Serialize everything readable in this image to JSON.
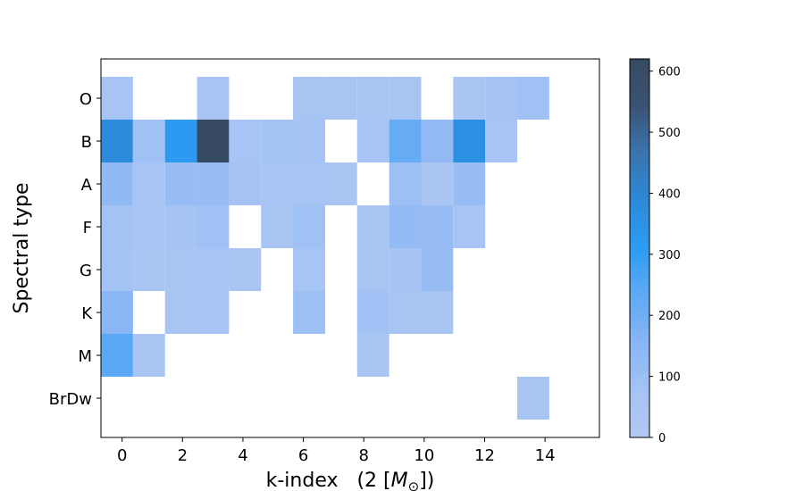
{
  "chart_data": {
    "type": "heatmap",
    "xlabel_text": "k-index   (2 [",
    "xlabel_var": "M",
    "xlabel_sub": "⊙",
    "xlabel_tail": "])",
    "ylabel": "Spectral type",
    "x_bin_edges": [
      -0.7,
      15.2
    ],
    "x_ticks": [
      "0",
      "2",
      "4",
      "6",
      "8",
      "10",
      "12",
      "14"
    ],
    "x_lim": [
      -0.7,
      15.8
    ],
    "y_categories": [
      "O",
      "B",
      "A",
      "F",
      "G",
      "K",
      "M",
      "BrDw"
    ],
    "colorbar": {
      "range": [
        0,
        620
      ],
      "ticks": [
        "0",
        "100",
        "200",
        "300",
        "400",
        "500",
        "600"
      ],
      "colors": [
        "#b3c8f2",
        "#a4c3f4",
        "#88b5f5",
        "#5faaf5",
        "#2c9cf4",
        "#2c8ad8",
        "#3a74af",
        "#3b5373",
        "#364a62"
      ]
    },
    "values": [
      [
        65,
        null,
        null,
        60,
        null,
        null,
        55,
        55,
        55,
        55,
        null,
        50,
        70,
        90,
        null
      ],
      [
        380,
        90,
        320,
        620,
        65,
        80,
        75,
        null,
        60,
        220,
        125,
        360,
        60,
        null,
        null
      ],
      [
        130,
        60,
        110,
        110,
        75,
        60,
        65,
        40,
        null,
        100,
        45,
        110,
        null,
        null,
        null
      ],
      [
        80,
        60,
        70,
        90,
        null,
        50,
        90,
        null,
        50,
        120,
        110,
        60,
        null,
        null,
        null
      ],
      [
        80,
        50,
        50,
        60,
        45,
        null,
        65,
        null,
        55,
        70,
        110,
        null,
        null,
        null,
        null
      ],
      [
        150,
        null,
        55,
        60,
        null,
        null,
        100,
        null,
        85,
        55,
        55,
        null,
        null,
        null,
        null
      ],
      [
        240,
        50,
        null,
        null,
        null,
        null,
        null,
        null,
        50,
        null,
        null,
        null,
        null,
        null,
        null
      ],
      [
        null,
        null,
        null,
        null,
        null,
        null,
        null,
        null,
        null,
        null,
        null,
        null,
        null,
        55,
        null
      ]
    ]
  }
}
